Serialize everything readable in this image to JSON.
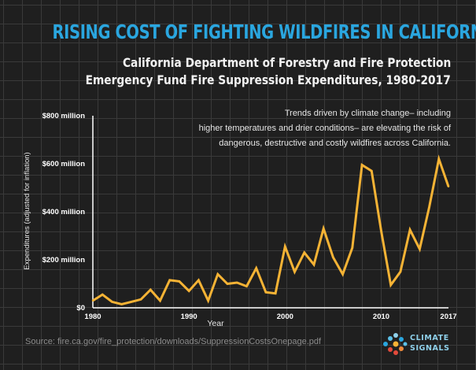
{
  "title": "RISING COST OF FIGHTING WILDFIRES IN CALIFORNIA",
  "subtitle_line1": "California Department of Forestry and Fire Protection",
  "subtitle_line2": "Emergency Fund Fire Suppression Expenditures, 1980-2017",
  "note_lines": [
    "Trends driven by climate change– including",
    "higher temperatures and drier conditions– are elevating the risk of",
    "dangerous, destructive and costly wildfires across California."
  ],
  "source": "Source: fire.ca.gov/fire_protection/downloads/SuppressionCostsOnepage.pdf",
  "logo": {
    "line1": "CLIMATE",
    "line2": "SIGNALS",
    "icon": "climate-signals-dots-icon"
  },
  "colors": {
    "background": "#1f1f1f",
    "title": "#2aa6df",
    "line": "#f5b335",
    "grid": "#3a3a3a"
  },
  "chart_data": {
    "type": "line",
    "xlabel": "Year",
    "ylabel": "Expenditures (adjusted for inflation)",
    "x_ticks": [
      1980,
      1990,
      2000,
      2010,
      2017
    ],
    "y_ticks": [
      {
        "value": 0,
        "label": "$0"
      },
      {
        "value": 200,
        "label": "$200 million"
      },
      {
        "value": 400,
        "label": "$400 million"
      },
      {
        "value": 600,
        "label": "$600 million"
      },
      {
        "value": 800,
        "label": "$800 million"
      }
    ],
    "xlim": [
      1980,
      2017
    ],
    "ylim": [
      0,
      800
    ],
    "series": [
      {
        "color": "#f5b335",
        "x": [
          1980,
          1981,
          1982,
          1983,
          1984,
          1985,
          1986,
          1987,
          1988,
          1989,
          1990,
          1991,
          1992,
          1993,
          1994,
          1995,
          1996,
          1997,
          1998,
          1999,
          2000,
          2001,
          2002,
          2003,
          2004,
          2005,
          2006,
          2007,
          2008,
          2009,
          2010,
          2011,
          2012,
          2013,
          2014,
          2015,
          2016,
          2017
        ],
        "values": [
          30,
          55,
          25,
          15,
          25,
          35,
          75,
          30,
          115,
          110,
          70,
          115,
          30,
          140,
          100,
          105,
          90,
          165,
          65,
          60,
          255,
          150,
          230,
          180,
          330,
          210,
          140,
          250,
          595,
          570,
          320,
          95,
          150,
          325,
          245,
          420,
          620,
          505
        ]
      }
    ]
  }
}
